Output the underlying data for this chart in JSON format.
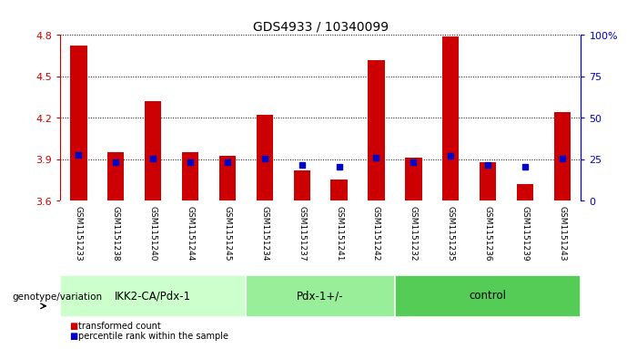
{
  "title": "GDS4933 / 10340099",
  "samples": [
    "GSM1151233",
    "GSM1151238",
    "GSM1151240",
    "GSM1151244",
    "GSM1151245",
    "GSM1151234",
    "GSM1151237",
    "GSM1151241",
    "GSM1151242",
    "GSM1151232",
    "GSM1151235",
    "GSM1151236",
    "GSM1151239",
    "GSM1151243"
  ],
  "red_values": [
    4.72,
    3.95,
    4.32,
    3.95,
    3.92,
    4.22,
    3.82,
    3.75,
    4.62,
    3.91,
    4.79,
    3.88,
    3.72,
    4.24
  ],
  "blue_values": [
    3.93,
    3.88,
    3.905,
    3.88,
    3.875,
    3.905,
    3.855,
    3.845,
    3.91,
    3.875,
    3.92,
    3.855,
    3.845,
    3.905
  ],
  "ymin": 3.6,
  "ymax": 4.8,
  "yticks": [
    3.6,
    3.9,
    4.2,
    4.5,
    4.8
  ],
  "groups": [
    {
      "label": "IKK2-CA/Pdx-1",
      "start": 0,
      "end": 5,
      "color": "#ccffcc"
    },
    {
      "label": "Pdx-1+/-",
      "start": 5,
      "end": 9,
      "color": "#99ee99"
    },
    {
      "label": "control",
      "start": 9,
      "end": 14,
      "color": "#55cc55"
    }
  ],
  "left_axis_color": "#cc0000",
  "right_axis_color": "#0000cc",
  "bar_color": "#cc0000",
  "blue_dot_color": "#0000cc",
  "background_color": "#ffffff",
  "xlabel_left": "genotype/variation",
  "right_yticks": [
    0,
    25,
    50,
    75,
    100
  ],
  "right_yticklabels": [
    "0",
    "25",
    "50",
    "75",
    "100%"
  ],
  "tick_label_area_color": "#cccccc",
  "bar_width": 0.45,
  "legend_red": "transformed count",
  "legend_blue": "percentile rank within the sample"
}
